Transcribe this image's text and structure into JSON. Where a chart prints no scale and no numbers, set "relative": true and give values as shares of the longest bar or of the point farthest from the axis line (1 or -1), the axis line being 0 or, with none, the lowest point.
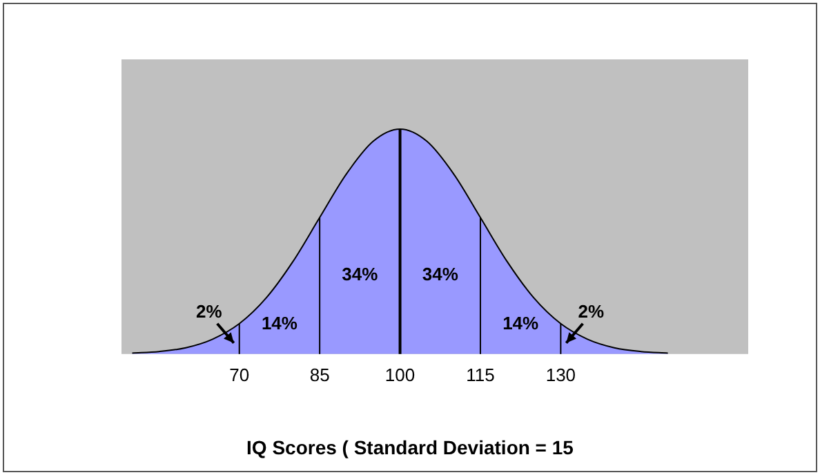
{
  "chart_data": {
    "type": "area",
    "relative": true,
    "xlabel": "IQ Scores ( Standard Deviation = 15",
    "color": "#9999ff",
    "x": [
      50,
      55,
      60,
      65,
      70,
      75,
      80,
      85,
      90,
      95,
      100,
      105,
      110,
      115,
      120,
      125,
      130,
      135,
      140,
      145,
      150
    ],
    "values": [
      0.004,
      0.011,
      0.028,
      0.066,
      0.135,
      0.249,
      0.411,
      0.607,
      0.801,
      0.946,
      1,
      0.946,
      0.801,
      0.607,
      0.411,
      0.249,
      0.135,
      0.066,
      0.028,
      0.011,
      0.004
    ],
    "xlim": [
      48,
      165
    ],
    "xticks": [
      70,
      85,
      100,
      115,
      130
    ],
    "ref_lines": [
      {
        "axis": "x",
        "value": 70
      },
      {
        "axis": "x",
        "value": 85
      },
      {
        "axis": "x",
        "value": 100
      },
      {
        "axis": "x",
        "value": 115
      },
      {
        "axis": "x",
        "value": 130
      }
    ],
    "annotations": [
      "2%",
      "14%",
      "34%",
      "34%",
      "14%",
      "2%"
    ]
  }
}
